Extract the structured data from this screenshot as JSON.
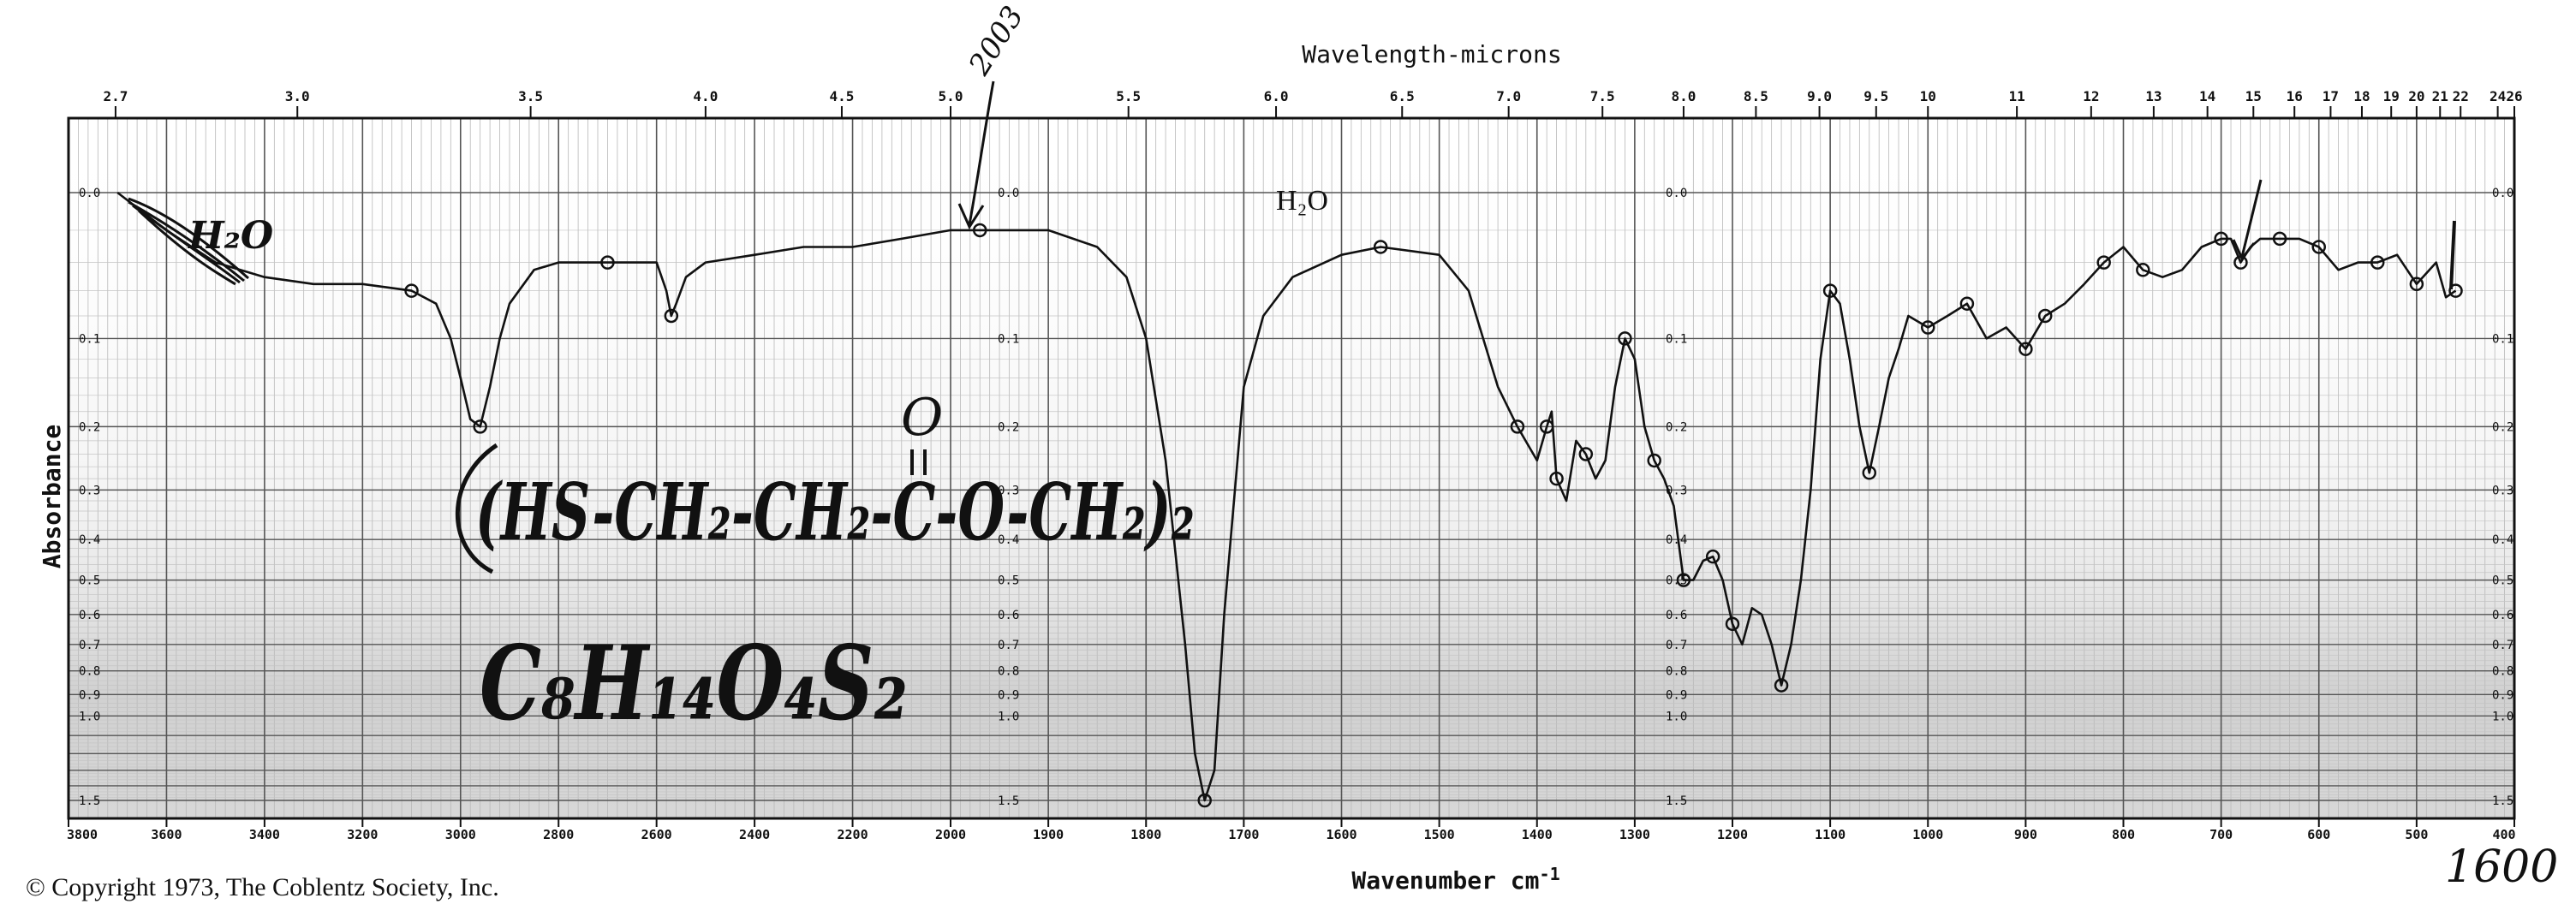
{
  "top_axis": {
    "title": "Wavelength-microns",
    "ticks": [
      {
        "label": "2.7",
        "wn": 3704
      },
      {
        "label": "3.0",
        "wn": 3333
      },
      {
        "label": "3.5",
        "wn": 2857
      },
      {
        "label": "4.0",
        "wn": 2500
      },
      {
        "label": "4.5",
        "wn": 2222
      },
      {
        "label": "5.0",
        "wn": 2000
      },
      {
        "label": "5.5",
        "wn": 1818
      },
      {
        "label": "6.0",
        "wn": 1667
      },
      {
        "label": "6.5",
        "wn": 1538
      },
      {
        "label": "7.0",
        "wn": 1429
      },
      {
        "label": "7.5",
        "wn": 1333
      },
      {
        "label": "8.0",
        "wn": 1250
      },
      {
        "label": "8.5",
        "wn": 1176
      },
      {
        "label": "9.0",
        "wn": 1111
      },
      {
        "label": "9.5",
        "wn": 1053
      },
      {
        "label": "10",
        "wn": 1000
      },
      {
        "label": "11",
        "wn": 909
      },
      {
        "label": "12",
        "wn": 833
      },
      {
        "label": "13",
        "wn": 769
      },
      {
        "label": "14",
        "wn": 714
      },
      {
        "label": "15",
        "wn": 667
      },
      {
        "label": "16",
        "wn": 625
      },
      {
        "label": "17",
        "wn": 588
      },
      {
        "label": "18",
        "wn": 556
      },
      {
        "label": "19",
        "wn": 526
      },
      {
        "label": "20",
        "wn": 500
      },
      {
        "label": "21",
        "wn": 476
      },
      {
        "label": "22",
        "wn": 455
      },
      {
        "label": "24",
        "wn": 417
      },
      {
        "label": "26",
        "wn": 400
      }
    ]
  },
  "bottom_axis": {
    "title": "Wavenumber cm",
    "title_sup": "-1",
    "ticks": [
      {
        "label": "3800",
        "wn": 3800
      },
      {
        "label": "3600",
        "wn": 3600
      },
      {
        "label": "3400",
        "wn": 3400
      },
      {
        "label": "3200",
        "wn": 3200
      },
      {
        "label": "3000",
        "wn": 3000
      },
      {
        "label": "2800",
        "wn": 2800
      },
      {
        "label": "2600",
        "wn": 2600
      },
      {
        "label": "2400",
        "wn": 2400
      },
      {
        "label": "2200",
        "wn": 2200
      },
      {
        "label": "2000",
        "wn": 2000
      },
      {
        "label": "1900",
        "wn": 1900
      },
      {
        "label": "1800",
        "wn": 1800
      },
      {
        "label": "1700",
        "wn": 1700
      },
      {
        "label": "1600",
        "wn": 1600
      },
      {
        "label": "1500",
        "wn": 1500
      },
      {
        "label": "1400",
        "wn": 1400
      },
      {
        "label": "1300",
        "wn": 1300
      },
      {
        "label": "1200",
        "wn": 1200
      },
      {
        "label": "1100",
        "wn": 1100
      },
      {
        "label": "1000",
        "wn": 1000
      },
      {
        "label": "900",
        "wn": 900
      },
      {
        "label": "800",
        "wn": 800
      },
      {
        "label": "700",
        "wn": 700
      },
      {
        "label": "600",
        "wn": 600
      },
      {
        "label": "500",
        "wn": 500
      },
      {
        "label": "400",
        "wn": 400
      }
    ]
  },
  "y_axis": {
    "title": "Absorbance",
    "ticks": [
      "0.0",
      "0.1",
      "0.2",
      "0.3",
      "0.4",
      "0.5",
      "0.6",
      "0.7",
      "0.8",
      "0.9",
      "1.0",
      "1.5"
    ]
  },
  "chart_data": {
    "type": "line",
    "xlabel": "Wavenumber cm-1",
    "ylabel": "Absorbance",
    "xlim": [
      3800,
      400
    ],
    "ylim": [
      0,
      1.5
    ],
    "x_scale": "coblentz two-scale: 4000-2000 cm-1 compressed, 2000-400 cm-1 expanded",
    "y_scale": "log (absorbance)",
    "series": [
      {
        "x": [
          3700,
          3600,
          3500,
          3400,
          3300,
          3200,
          3100,
          3050,
          3020,
          3000,
          2980,
          2960,
          2940,
          2920,
          2900,
          2850,
          2800,
          2750,
          2700,
          2650,
          2600,
          2580,
          2570,
          2560,
          2540,
          2500,
          2400,
          2300,
          2200,
          2100,
          2000,
          1970,
          1950,
          1900,
          1850,
          1820,
          1800,
          1780,
          1760,
          1750,
          1740,
          1730,
          1720,
          1700,
          1680,
          1650,
          1600,
          1560,
          1500,
          1470,
          1440,
          1420,
          1400,
          1390,
          1385,
          1380,
          1370,
          1360,
          1350,
          1340,
          1330,
          1320,
          1310,
          1300,
          1290,
          1280,
          1270,
          1260,
          1250,
          1240,
          1230,
          1220,
          1210,
          1200,
          1190,
          1180,
          1170,
          1160,
          1150,
          1140,
          1130,
          1120,
          1110,
          1100,
          1090,
          1080,
          1070,
          1060,
          1050,
          1040,
          1030,
          1020,
          1000,
          980,
          960,
          940,
          920,
          900,
          880,
          860,
          840,
          820,
          800,
          780,
          760,
          740,
          720,
          700,
          690,
          680,
          670,
          660,
          640,
          620,
          600,
          580,
          560,
          540,
          520,
          500,
          480,
          470,
          460
        ],
        "y": [
          0.0,
          0.02,
          0.04,
          0.05,
          0.055,
          0.055,
          0.06,
          0.07,
          0.1,
          0.14,
          0.19,
          0.2,
          0.15,
          0.1,
          0.07,
          0.045,
          0.04,
          0.04,
          0.04,
          0.04,
          0.04,
          0.06,
          0.08,
          0.07,
          0.05,
          0.04,
          0.035,
          0.03,
          0.03,
          0.025,
          0.02,
          0.02,
          0.02,
          0.02,
          0.03,
          0.05,
          0.1,
          0.25,
          0.7,
          1.2,
          1.5,
          1.3,
          0.6,
          0.15,
          0.08,
          0.05,
          0.035,
          0.03,
          0.035,
          0.06,
          0.15,
          0.2,
          0.25,
          0.2,
          0.18,
          0.28,
          0.32,
          0.22,
          0.24,
          0.28,
          0.25,
          0.15,
          0.1,
          0.12,
          0.2,
          0.25,
          0.28,
          0.33,
          0.5,
          0.5,
          0.45,
          0.44,
          0.5,
          0.63,
          0.7,
          0.58,
          0.6,
          0.7,
          0.86,
          0.7,
          0.5,
          0.3,
          0.12,
          0.06,
          0.07,
          0.12,
          0.2,
          0.27,
          0.2,
          0.14,
          0.11,
          0.08,
          0.09,
          0.08,
          0.07,
          0.1,
          0.09,
          0.11,
          0.08,
          0.07,
          0.055,
          0.04,
          0.03,
          0.045,
          0.05,
          0.045,
          0.03,
          0.025,
          0.025,
          0.04,
          0.03,
          0.025,
          0.025,
          0.025,
          0.03,
          0.045,
          0.04,
          0.04,
          0.035,
          0.055,
          0.04,
          0.065,
          0.06
        ]
      }
    ]
  },
  "handwritten": {
    "formula_main": "(HS-CH₂-CH₂-C-O-CH₂)₂",
    "carbonyl_o": "O",
    "molecular_formula": "C₈H₁₄O₄S₂",
    "water_left": "H₂O",
    "top_number": "2003",
    "corner_number": "1600"
  },
  "printed_annotations": {
    "water_label": "H₂O"
  },
  "copyright": "© Copyright 1973, The Coblentz Society, Inc."
}
